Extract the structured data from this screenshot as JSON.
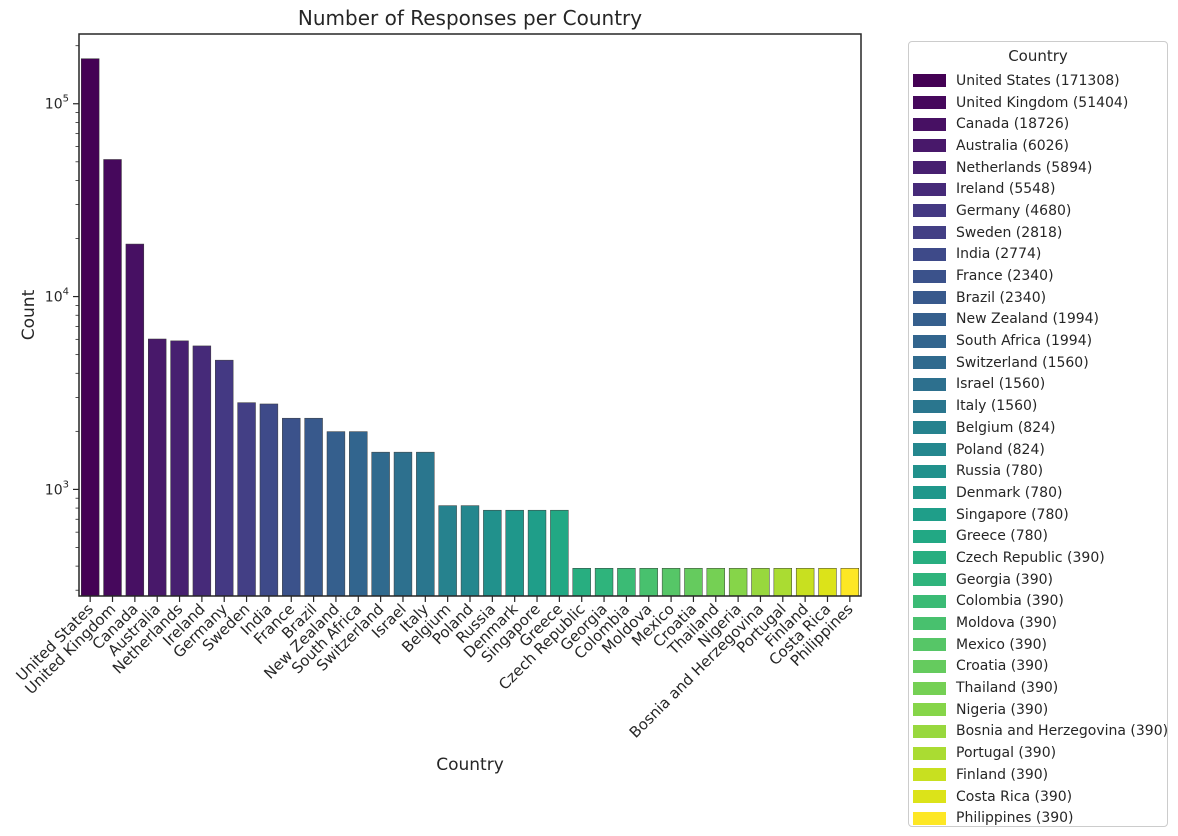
{
  "chart_data": {
    "type": "bar",
    "title": "Number of Responses per Country",
    "xlabel": "Country",
    "ylabel": "Count",
    "yscale": "log",
    "ylim": [
      280,
      230000
    ],
    "yticks": [
      {
        "value": 1000,
        "base": "10",
        "exp": "3"
      },
      {
        "value": 10000,
        "base": "10",
        "exp": "4"
      },
      {
        "value": 100000,
        "base": "10",
        "exp": "5"
      }
    ],
    "grid": false,
    "legend": {
      "title": "Country",
      "placement": "outside right"
    },
    "categories": [
      "United States",
      "United Kingdom",
      "Canada",
      "Australia",
      "Netherlands",
      "Ireland",
      "Germany",
      "Sweden",
      "India",
      "France",
      "Brazil",
      "New Zealand",
      "South Africa",
      "Switzerland",
      "Israel",
      "Italy",
      "Belgium",
      "Poland",
      "Russia",
      "Denmark",
      "Singapore",
      "Greece",
      "Czech Republic",
      "Georgia",
      "Colombia",
      "Moldova",
      "Mexico",
      "Croatia",
      "Thailand",
      "Nigeria",
      "Bosnia and Herzegovina",
      "Portugal",
      "Finland",
      "Costa Rica",
      "Philippines"
    ],
    "values": [
      171308,
      51404,
      18726,
      6026,
      5894,
      5548,
      4680,
      2818,
      2774,
      2340,
      2340,
      1994,
      1994,
      1560,
      1560,
      1560,
      824,
      824,
      780,
      780,
      780,
      780,
      390,
      390,
      390,
      390,
      390,
      390,
      390,
      390,
      390,
      390,
      390,
      390,
      390
    ],
    "legend_labels": [
      "United States (171308)",
      "United Kingdom (51404)",
      "Canada (18726)",
      "Australia (6026)",
      "Netherlands (5894)",
      "Ireland (5548)",
      "Germany (4680)",
      "Sweden (2818)",
      "India (2774)",
      "France (2340)",
      "Brazil (2340)",
      "New Zealand (1994)",
      "South Africa (1994)",
      "Switzerland (1560)",
      "Israel (1560)",
      "Italy (1560)",
      "Belgium (824)",
      "Poland (824)",
      "Russia (780)",
      "Denmark (780)",
      "Singapore (780)",
      "Greece (780)",
      "Czech Republic (390)",
      "Georgia (390)",
      "Colombia (390)",
      "Moldova (390)",
      "Mexico (390)",
      "Croatia (390)",
      "Thailand (390)",
      "Nigeria (390)",
      "Bosnia and Herzegovina (390)",
      "Portugal (390)",
      "Finland (390)",
      "Costa Rica (390)",
      "Philippines (390)"
    ],
    "colors": [
      "#440154",
      "#46085c",
      "#471063",
      "#48186a",
      "#472070",
      "#462a79",
      "#443983",
      "#433f85",
      "#3e4a89",
      "#3b528b",
      "#38598c",
      "#355f8d",
      "#32658e",
      "#306a8e",
      "#2d708e",
      "#2a768e",
      "#26828e",
      "#24878e",
      "#21918c",
      "#1f978b",
      "#1f9e89",
      "#22a884",
      "#28ae80",
      "#2fb47c",
      "#3bbb75",
      "#48c16e",
      "#56c667",
      "#65cb5e",
      "#75d054",
      "#86d549",
      "#98d83e",
      "#aadc32",
      "#c8e020",
      "#dce319",
      "#fde725"
    ]
  }
}
